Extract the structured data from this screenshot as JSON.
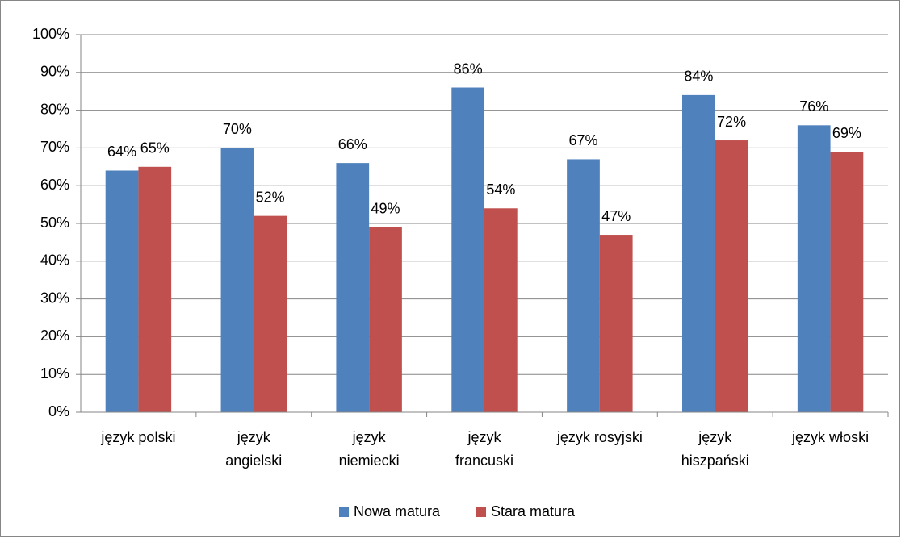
{
  "chart_data": {
    "type": "bar",
    "categories": [
      "język polski",
      "język\nangielski",
      "język\nniemiecki",
      "język\nfrancuski",
      "język rosyjski",
      "język\nhiszpański",
      "język włoski"
    ],
    "series": [
      {
        "name": "Nowa matura",
        "color": "#4f81bd",
        "values": [
          64,
          70,
          66,
          86,
          67,
          84,
          76
        ],
        "value_labels": [
          "64%",
          "70%",
          "66%",
          "86%",
          "67%",
          "84%",
          "76%"
        ]
      },
      {
        "name": "Stara matura",
        "color": "#c0504d",
        "values": [
          65,
          52,
          49,
          54,
          47,
          72,
          69
        ],
        "value_labels": [
          "65%",
          "52%",
          "49%",
          "54%",
          "47%",
          "72%",
          "69%"
        ]
      }
    ],
    "ylim": [
      0,
      100
    ],
    "yticks": [
      {
        "value": 0,
        "label": "0%"
      },
      {
        "value": 10,
        "label": "10%"
      },
      {
        "value": 20,
        "label": "20%"
      },
      {
        "value": 30,
        "label": "30%"
      },
      {
        "value": 40,
        "label": "40%"
      },
      {
        "value": 50,
        "label": "50%"
      },
      {
        "value": 60,
        "label": "60%"
      },
      {
        "value": 70,
        "label": "70%"
      },
      {
        "value": 80,
        "label": "80%"
      },
      {
        "value": 90,
        "label": "90%"
      },
      {
        "value": 100,
        "label": "100%"
      }
    ],
    "grid": true,
    "legend": "bottom"
  }
}
